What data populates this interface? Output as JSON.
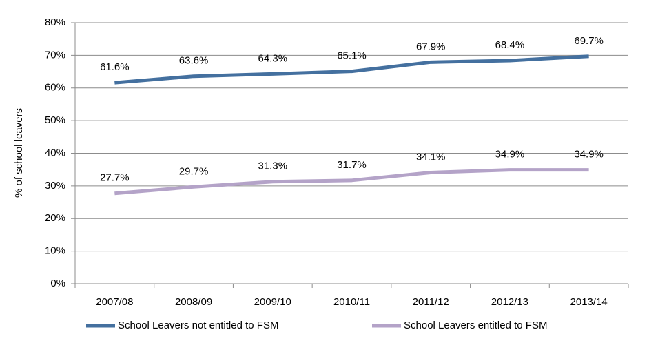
{
  "chart_data": {
    "type": "line",
    "y_label": "% of school leavers",
    "categories": [
      "2007/08",
      "2008/09",
      "2009/10",
      "2010/11",
      "2011/12",
      "2012/13",
      "2013/14"
    ],
    "series": [
      {
        "name": "School Leavers not entitled to FSM",
        "color": "#44709f",
        "values": [
          61.6,
          63.6,
          64.3,
          65.1,
          67.9,
          68.4,
          69.7
        ],
        "value_labels": [
          "61.6%",
          "63.6%",
          "64.3%",
          "65.1%",
          "67.9%",
          "68.4%",
          "69.7%"
        ]
      },
      {
        "name": "School Leavers entitled to FSM",
        "color": "#b4a3c8",
        "values": [
          27.7,
          29.7,
          31.3,
          31.7,
          34.1,
          34.9,
          34.9
        ],
        "value_labels": [
          "27.7%",
          "29.7%",
          "31.3%",
          "31.7%",
          "34.1%",
          "34.9%",
          "34.9%"
        ]
      }
    ],
    "ylim": [
      0,
      80
    ],
    "yticks": [
      {
        "value": 0,
        "label": "0%"
      },
      {
        "value": 10,
        "label": "10%"
      },
      {
        "value": 20,
        "label": "20%"
      },
      {
        "value": 30,
        "label": "30%"
      },
      {
        "value": 40,
        "label": "40%"
      },
      {
        "value": 50,
        "label": "50%"
      },
      {
        "value": 60,
        "label": "60%"
      },
      {
        "value": 70,
        "label": "70%"
      },
      {
        "value": 80,
        "label": "80%"
      }
    ],
    "grid": true,
    "legend": "bottom"
  }
}
